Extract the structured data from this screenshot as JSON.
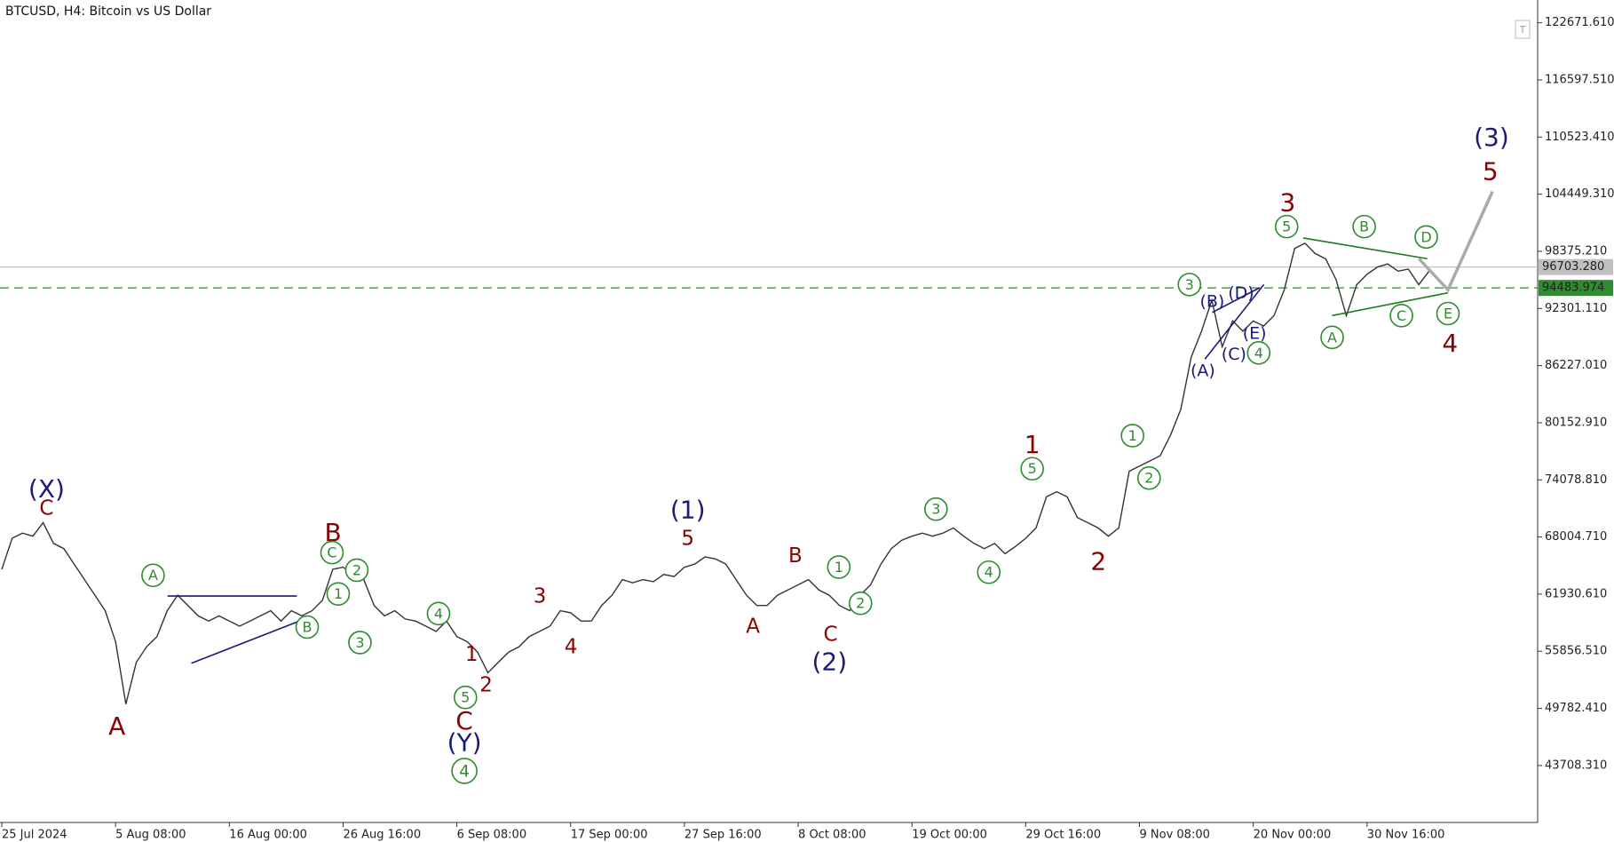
{
  "chart_data": {
    "type": "line",
    "title": "BTCUSD, H4:  Bitcoin vs US Dollar",
    "color": "#333333",
    "ylim": [
      37656,
      125092
    ],
    "yticks": [
      {
        "value": 122671.61,
        "label": "122671.610"
      },
      {
        "value": 116597.51,
        "label": "116597.510"
      },
      {
        "value": 110523.41,
        "label": "110523.410"
      },
      {
        "value": 104449.31,
        "label": "104449.310"
      },
      {
        "value": 98375.21,
        "label": "98375.210"
      },
      {
        "value": 92301.11,
        "label": "92301.110"
      },
      {
        "value": 86227.01,
        "label": "86227.010"
      },
      {
        "value": 80152.91,
        "label": "80152.910"
      },
      {
        "value": 74078.81,
        "label": "74078.810"
      },
      {
        "value": 68004.71,
        "label": "68004.710"
      },
      {
        "value": 61930.61,
        "label": "61930.610"
      },
      {
        "value": 55856.51,
        "label": "55856.510"
      },
      {
        "value": 49782.41,
        "label": "49782.410"
      },
      {
        "value": 43708.31,
        "label": "43708.310"
      }
    ],
    "xtick_labels": [
      "25 Jul 2024",
      "5 Aug 08:00",
      "16 Aug 00:00",
      "26 Aug 16:00",
      "6 Sep 08:00",
      "17 Sep 00:00",
      "27 Sep 16:00",
      "8 Oct 08:00",
      "19 Oct 00:00",
      "29 Oct 16:00",
      "9 Nov 08:00",
      "20 Nov 00:00",
      "30 Nov 16:00"
    ],
    "values": [
      64570,
      67870,
      68420,
      68090,
      69520,
      67320,
      66770,
      65120,
      63470,
      61820,
      60170,
      56870,
      50240,
      54670,
      56320,
      57420,
      60170,
      61820,
      60720,
      59620,
      59070,
      59620,
      59070,
      58520,
      59070,
      59620,
      60170,
      59070,
      60170,
      59620,
      60170,
      61270,
      64570,
      64790,
      64020,
      63470,
      60720,
      59620,
      60170,
      59290,
      59070,
      58520,
      57970,
      59070,
      57420,
      56870,
      55770,
      53570,
      54670,
      55770,
      56320,
      57420,
      57970,
      58520,
      60170,
      59950,
      59070,
      59070,
      60720,
      61820,
      63470,
      63130,
      63470,
      63250,
      64020,
      63800,
      64790,
      65120,
      65890,
      65670,
      65120,
      63470,
      61820,
      60720,
      60720,
      61820,
      62370,
      62920,
      63470,
      62370,
      61820,
      60720,
      60170,
      61820,
      62920,
      65120,
      66770,
      67650,
      68090,
      68420,
      68090,
      68420,
      68970,
      68090,
      67320,
      66770,
      67320,
      66220,
      66990,
      67870,
      68970,
      72270,
      72820,
      72270,
      70070,
      69520,
      68970,
      68090,
      68970,
      74990,
      75540,
      76090,
      76640,
      78840,
      81590,
      87130,
      89880,
      93180,
      88230,
      90980,
      89880,
      90980,
      90430,
      91530,
      94280,
      98680,
      99230,
      98130,
      97580,
      95380,
      91530,
      94830,
      95930,
      96700,
      97030,
      96260,
      96480,
      94830,
      96260
    ],
    "projection": {
      "color": "#aaaaaa",
      "values": [
        97580,
        94280,
        104735
      ]
    },
    "hlines": [
      {
        "value": 96703.28,
        "label": "96703.280",
        "color": "#c0c0c0",
        "style": "solid"
      },
      {
        "value": 94483.974,
        "label": "94483.974",
        "color": "#2e8b2e",
        "style": "dashed"
      }
    ],
    "annotations": [
      {
        "text": "(X)",
        "color": "#1a1a7a",
        "style": "large"
      },
      {
        "text": "C",
        "color": "#8b0000",
        "style": "medium"
      },
      {
        "text": "A",
        "color": "#8b0000",
        "style": "large"
      },
      {
        "text": "A",
        "color": "#2e8b2e",
        "style": "circle"
      },
      {
        "text": "B",
        "color": "#2e8b2e",
        "style": "circle"
      },
      {
        "text": "B",
        "color": "#8b0000",
        "style": "large"
      },
      {
        "text": "C",
        "color": "#2e8b2e",
        "style": "circle"
      },
      {
        "text": "2",
        "color": "#2e8b2e",
        "style": "circle"
      },
      {
        "text": "1",
        "color": "#2e8b2e",
        "style": "circle"
      },
      {
        "text": "3",
        "color": "#2e8b2e",
        "style": "circle"
      },
      {
        "text": "4",
        "color": "#2e8b2e",
        "style": "circle"
      },
      {
        "text": "5",
        "color": "#2e8b2e",
        "style": "circle"
      },
      {
        "text": "C",
        "color": "#8b0000",
        "style": "large"
      },
      {
        "text": "(Y)",
        "color": "#1a1a7a",
        "style": "large"
      },
      {
        "text": "4",
        "color": "#2e8b2e",
        "style": "circle-large"
      },
      {
        "text": "1",
        "color": "#8b0000",
        "style": "medium"
      },
      {
        "text": "2",
        "color": "#8b0000",
        "style": "medium"
      },
      {
        "text": "3",
        "color": "#8b0000",
        "style": "medium"
      },
      {
        "text": "4",
        "color": "#8b0000",
        "style": "medium"
      },
      {
        "text": "(1)",
        "color": "#1a1a7a",
        "style": "large"
      },
      {
        "text": "5",
        "color": "#8b0000",
        "style": "medium"
      },
      {
        "text": "A",
        "color": "#8b0000",
        "style": "medium"
      },
      {
        "text": "B",
        "color": "#8b0000",
        "style": "medium"
      },
      {
        "text": "C",
        "color": "#8b0000",
        "style": "medium"
      },
      {
        "text": "(2)",
        "color": "#1a1a7a",
        "style": "large"
      },
      {
        "text": "1",
        "color": "#2e8b2e",
        "style": "circle"
      },
      {
        "text": "2",
        "color": "#2e8b2e",
        "style": "circle"
      },
      {
        "text": "3",
        "color": "#2e8b2e",
        "style": "circle"
      },
      {
        "text": "4",
        "color": "#2e8b2e",
        "style": "circle"
      },
      {
        "text": "5",
        "color": "#2e8b2e",
        "style": "circle"
      },
      {
        "text": "1",
        "color": "#8b0000",
        "style": "large"
      },
      {
        "text": "2",
        "color": "#8b0000",
        "style": "large"
      },
      {
        "text": "1",
        "color": "#2e8b2e",
        "style": "circle"
      },
      {
        "text": "2",
        "color": "#2e8b2e",
        "style": "circle"
      },
      {
        "text": "3",
        "color": "#2e8b2e",
        "style": "circle"
      },
      {
        "text": "(A)",
        "color": "#1a1a7a",
        "style": "small"
      },
      {
        "text": "(B)",
        "color": "#1a1a7a",
        "style": "small"
      },
      {
        "text": "(C)",
        "color": "#1a1a7a",
        "style": "small"
      },
      {
        "text": "(D)",
        "color": "#1a1a7a",
        "style": "small"
      },
      {
        "text": "(E)",
        "color": "#1a1a7a",
        "style": "small"
      },
      {
        "text": "4",
        "color": "#2e8b2e",
        "style": "circle"
      },
      {
        "text": "5",
        "color": "#2e8b2e",
        "style": "circle"
      },
      {
        "text": "3",
        "color": "#8b0000",
        "style": "large"
      },
      {
        "text": "A",
        "color": "#2e8b2e",
        "style": "circle"
      },
      {
        "text": "B",
        "color": "#2e8b2e",
        "style": "circle"
      },
      {
        "text": "C",
        "color": "#2e8b2e",
        "style": "circle"
      },
      {
        "text": "D",
        "color": "#2e8b2e",
        "style": "circle"
      },
      {
        "text": "E",
        "color": "#2e8b2e",
        "style": "circle"
      },
      {
        "text": "4",
        "color": "#8b0000",
        "style": "large"
      },
      {
        "text": "(3)",
        "color": "#1a1a7a",
        "style": "large"
      },
      {
        "text": "5",
        "color": "#8b0000",
        "style": "large"
      }
    ]
  }
}
